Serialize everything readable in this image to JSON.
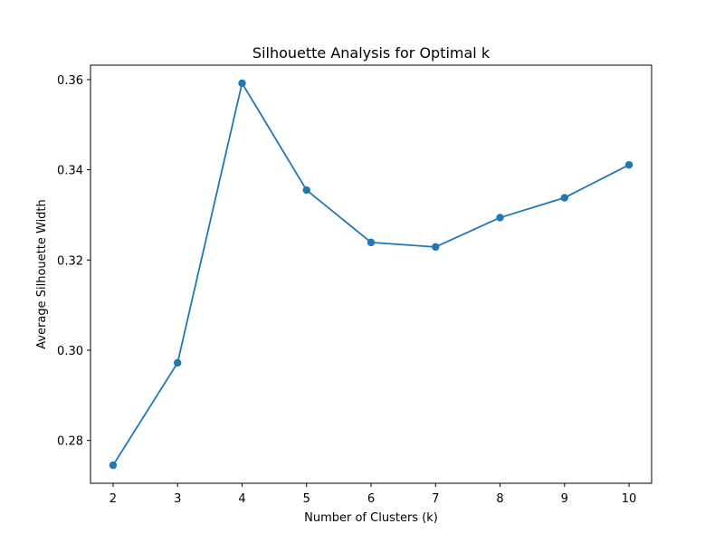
{
  "chart_data": {
    "type": "line",
    "title": "Silhouette Analysis for Optimal k",
    "xlabel": "Number of Clusters (k)",
    "ylabel": "Average Silhouette Width",
    "x": [
      2,
      3,
      4,
      5,
      6,
      7,
      8,
      9,
      10
    ],
    "series": [
      {
        "values": [
          0.2745,
          0.2972,
          0.3592,
          0.3355,
          0.3239,
          0.3229,
          0.3294,
          0.3338,
          0.3411
        ],
        "color": "#1f77b4",
        "marker": "circle"
      }
    ],
    "xticks": [
      "2",
      "3",
      "4",
      "5",
      "6",
      "7",
      "8",
      "9",
      "10"
    ],
    "yticks": [
      "0.28",
      "0.30",
      "0.32",
      "0.34",
      "0.36"
    ],
    "ytick_values": [
      0.28,
      0.3,
      0.32,
      0.34,
      0.36
    ],
    "xlim": [
      1.65,
      10.35
    ],
    "ylim": [
      0.2705,
      0.3632
    ],
    "grid": false
  }
}
